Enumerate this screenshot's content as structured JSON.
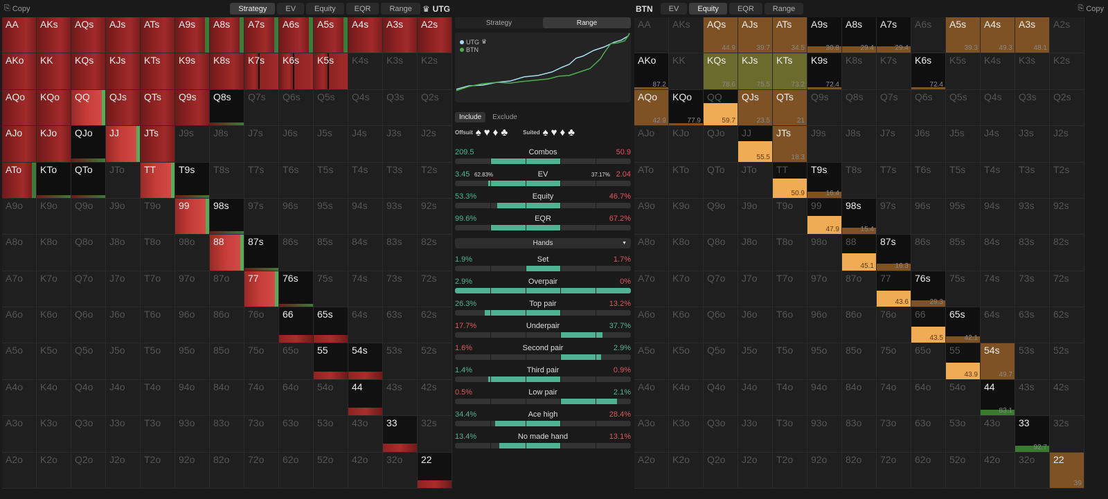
{
  "left": {
    "copy": "Copy",
    "tabs": [
      "Strategy",
      "EV",
      "Equity",
      "EQR",
      "Range"
    ],
    "active_tab": 0,
    "player": "UTG",
    "player_icon": "crown-icon"
  },
  "right": {
    "copy": "Copy",
    "player": "BTN",
    "tabs": [
      "EV",
      "Equity",
      "EQR",
      "Range"
    ],
    "active_tab": 1
  },
  "middle": {
    "segments": [
      "Strategy",
      "Range"
    ],
    "active_segment": 1,
    "legend": [
      {
        "name": "UTG",
        "color": "#a7dff0",
        "icon": "crown-icon"
      },
      {
        "name": "BTN",
        "color": "#4ab04e"
      }
    ],
    "filter": {
      "include": "Include",
      "exclude": "Exclude",
      "offsuit": "Offsuit",
      "suited": "Suited",
      "suits": [
        "♠",
        "♥",
        "♦",
        "♣"
      ]
    },
    "stats": [
      {
        "left": "209.5",
        "title": "Combos",
        "right": "50.9",
        "lc": "g",
        "rc": "rd",
        "m1": 0.2,
        "m2": 0.6
      },
      {
        "left": "3.45",
        "left_sub": "62.83%",
        "title": "EV",
        "right_sub": "37.17%",
        "right": "2.04",
        "lc": "g",
        "rc": "rd",
        "m1": 0.19,
        "m2": 0.6
      },
      {
        "left": "53.3%",
        "title": "Equity",
        "right": "46.7%",
        "lc": "g",
        "rc": "rd",
        "m1": 0.24,
        "m2": 0.6
      },
      {
        "left": "99.6%",
        "title": "EQR",
        "right": "67.2%",
        "lc": "g",
        "rc": "rd",
        "m1": 0.2,
        "m2": 0.6
      }
    ],
    "hands_label": "Hands",
    "hand_stats": [
      {
        "left": "1.9%",
        "title": "Set",
        "right": "1.7%",
        "lc": "g",
        "rc": "rd",
        "m1": 0.4,
        "m2": 0.6
      },
      {
        "left": "2.9%",
        "title": "Overpair",
        "right": "0%",
        "lc": "g",
        "rc": "rd",
        "m1": 0,
        "m2": 1
      },
      {
        "left": "26.3%",
        "title": "Top pair",
        "right": "13.2%",
        "lc": "g",
        "rc": "rd",
        "m1": 0.17,
        "m2": 0.6
      },
      {
        "left": "17.7%",
        "title": "Underpair",
        "right": "37.7%",
        "lc": "rd",
        "rc": "g",
        "m1": 0.6,
        "m2": 0.84
      },
      {
        "left": "1.6%",
        "title": "Second pair",
        "right": "2.9%",
        "lc": "rd",
        "rc": "g",
        "m1": 0.6,
        "m2": 0.83
      },
      {
        "left": "1.4%",
        "title": "Third pair",
        "right": "0.9%",
        "lc": "g",
        "rc": "rd",
        "m1": 0.19,
        "m2": 0.6
      },
      {
        "left": "0.5%",
        "title": "Low pair",
        "right": "2.1%",
        "lc": "rd",
        "rc": "g",
        "m1": 0.6,
        "m2": 0.92
      },
      {
        "left": "34.4%",
        "title": "Ace high",
        "right": "28.4%",
        "lc": "g",
        "rc": "rd",
        "m1": 0.23,
        "m2": 0.6
      },
      {
        "left": "13.4%",
        "title": "No made hand",
        "right": "13.1%",
        "lc": "g",
        "rc": "rd",
        "m1": 0.25,
        "m2": 0.6
      }
    ]
  },
  "ranks": [
    "A",
    "K",
    "Q",
    "J",
    "T",
    "9",
    "8",
    "7",
    "6",
    "5",
    "4",
    "3",
    "2"
  ],
  "utg_cells": {
    "AA": "R",
    "AKs": "R",
    "AQs": "R",
    "AJs": "R",
    "ATs": "R",
    "A9s": "RG",
    "A8s": "RG",
    "A7s": "RG",
    "A6s": "RG",
    "A5s": "RG",
    "A4s": "R",
    "A3s": "R",
    "A2s": "R",
    "AKo": "R",
    "KK": "R",
    "KQs": "R",
    "KJs": "R",
    "KTs": "R",
    "K9s": "R",
    "K8s": "R",
    "K7s": "RH",
    "K6s": "RH",
    "K5s": "RH",
    "AQo": "R",
    "KQo": "R",
    "QQ": "B",
    "QJs": "R",
    "QTs": "R",
    "Q9s": "R",
    "Q8s": "D",
    "AJo": "R",
    "KJo": "R",
    "QJo": "D",
    "JJ": "B",
    "JTs": "R",
    "ATo": "RG",
    "KTo": "D",
    "QTo": "D",
    "TT": "B",
    "T9s": "D",
    "99": "B",
    "98s": "D",
    "88": "B",
    "87s": "D",
    "77": "B",
    "76s": "D",
    "66": "P",
    "65s": "P",
    "55": "P",
    "54s": "P",
    "44": "P",
    "33": "P",
    "22": "P"
  },
  "btn_cells": {
    "AQs": [
      "br",
      44.9
    ],
    "AJs": [
      "br",
      39.7
    ],
    "ATs": [
      "br",
      34.5
    ],
    "A9s": [
      "bk",
      30.8
    ],
    "A8s": [
      "bk",
      29.4
    ],
    "A7s": [
      "bk",
      29.4
    ],
    "A5s": [
      "br",
      39.3
    ],
    "A4s": [
      "br",
      49.3
    ],
    "A3s": [
      "br",
      48.1
    ],
    "AKo": [
      "bk",
      87.2
    ],
    "KQs": [
      "ol",
      78.6
    ],
    "KJs": [
      "ol",
      75.5
    ],
    "KTs": [
      "ol",
      73.2
    ],
    "K9s": [
      "bk",
      72.4
    ],
    "K6s": [
      "bk",
      72.4
    ],
    "AQo": [
      "br",
      42.9
    ],
    "KQo": [
      "bk",
      77.9
    ],
    "QQ": [
      "yl",
      59.7
    ],
    "QJs": [
      "br",
      23.5
    ],
    "QTs": [
      "br",
      21
    ],
    "JJ": [
      "yl",
      55.5
    ],
    "JTs": [
      "br",
      18.3
    ],
    "TT": [
      "yl",
      50.9
    ],
    "T9s": [
      "bk",
      16.4
    ],
    "99": [
      "yl",
      47.9
    ],
    "98s": [
      "bk",
      15.4
    ],
    "88": [
      "yl",
      45.1
    ],
    "87s": [
      "bk",
      16.3
    ],
    "77": [
      "yl",
      43.6
    ],
    "76s": [
      "bk",
      29.3
    ],
    "66": [
      "yl",
      43.5
    ],
    "65s": [
      "bk",
      42.1
    ],
    "55": [
      "yl",
      43.9
    ],
    "54s": [
      "br",
      49.7
    ],
    "44": [
      "gn",
      83.1
    ],
    "33": [
      "gn",
      92.7
    ],
    "22": [
      "br",
      39
    ]
  },
  "colors": {
    "raise": "#8e2222",
    "raise_bright": "#c53c38",
    "call": "#3e7a3a",
    "equity_hi": "#f0ac54",
    "equity_mid": "#7e5224",
    "equity_ol": "#6a6b2c",
    "accent": "#4fb393",
    "loss": "#e1545b"
  }
}
